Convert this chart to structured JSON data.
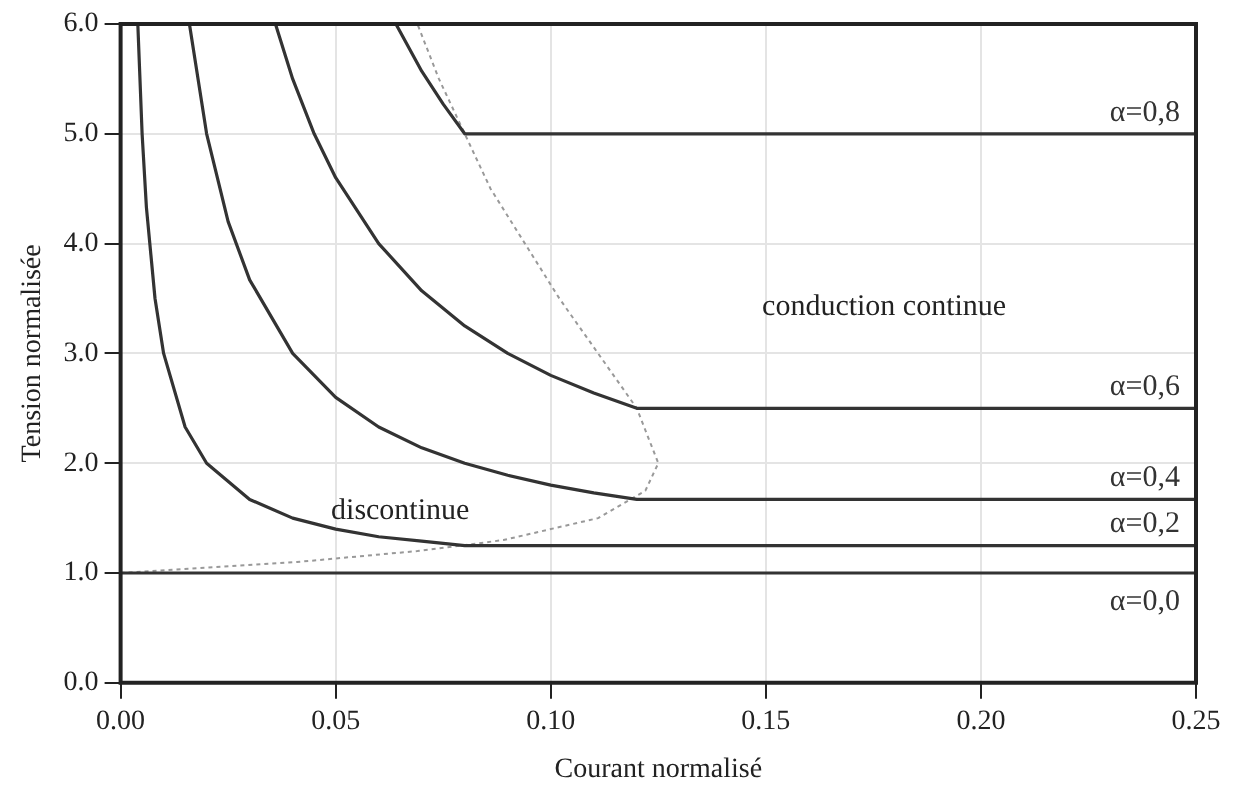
{
  "chart_data": {
    "type": "line",
    "xlabel": "Courant normalisé",
    "ylabel": "Tension normalisée",
    "xlim": [
      0,
      0.25
    ],
    "ylim": [
      0,
      6
    ],
    "xticks": [
      {
        "value": 0,
        "label": "0.00"
      },
      {
        "value": 0.05,
        "label": "0.05"
      },
      {
        "value": 0.1,
        "label": "0.10"
      },
      {
        "value": 0.15,
        "label": "0.15"
      },
      {
        "value": 0.2,
        "label": "0.20"
      },
      {
        "value": 0.25,
        "label": "0.25"
      }
    ],
    "yticks": [
      {
        "value": 0,
        "label": "0.0"
      },
      {
        "value": 1,
        "label": "1.0"
      },
      {
        "value": 2,
        "label": "2.0"
      },
      {
        "value": 3,
        "label": "3.0"
      },
      {
        "value": 4,
        "label": "4.0"
      },
      {
        "value": 5,
        "label": "5.0"
      },
      {
        "value": 6,
        "label": "6.0"
      }
    ],
    "grid": true,
    "legend": false,
    "marker": "none",
    "annotations": [
      "discontinue",
      "conduction continue"
    ],
    "series": [
      {
        "name": "α=0,0",
        "color": "#333333",
        "x": [
          0,
          0.25
        ],
        "values": [
          1,
          1
        ]
      },
      {
        "name": "α=0,2",
        "color": "#333333",
        "x": [
          0.004,
          0.005,
          0.006,
          0.008,
          0.01,
          0.015,
          0.02,
          0.03,
          0.04,
          0.05,
          0.06,
          0.07,
          0.08,
          0.25
        ],
        "values": [
          6,
          5,
          4.33,
          3.5,
          3,
          2.33,
          2,
          1.67,
          1.5,
          1.4,
          1.33,
          1.29,
          1.25,
          1.25
        ]
      },
      {
        "name": "α=0,4",
        "color": "#333333",
        "x": [
          0.016,
          0.02,
          0.025,
          0.03,
          0.04,
          0.05,
          0.06,
          0.07,
          0.08,
          0.09,
          0.1,
          0.11,
          0.12,
          0.25
        ],
        "values": [
          6,
          5,
          4.2,
          3.67,
          3,
          2.6,
          2.33,
          2.14,
          2,
          1.89,
          1.8,
          1.73,
          1.67,
          1.67
        ]
      },
      {
        "name": "α=0,6",
        "color": "#333333",
        "x": [
          0.036,
          0.04,
          0.045,
          0.05,
          0.06,
          0.07,
          0.08,
          0.09,
          0.1,
          0.11,
          0.12,
          0.25
        ],
        "values": [
          6,
          5.5,
          5,
          4.6,
          4,
          3.57,
          3.25,
          3,
          2.8,
          2.64,
          2.5,
          2.5
        ]
      },
      {
        "name": "α=0,8",
        "color": "#333333",
        "x": [
          0.064,
          0.07,
          0.075,
          0.08,
          0.25
        ],
        "values": [
          6,
          5.57,
          5.27,
          5,
          5
        ]
      },
      {
        "color": "#999999",
        "line_style": "dotted",
        "x": [
          0,
          0.041,
          0.069,
          0.089,
          0.111,
          0.122,
          0.125,
          0.12,
          0.111,
          0.102,
          0.094,
          0.086,
          0.08,
          0.074,
          0.069
        ],
        "values": [
          1,
          1.1,
          1.2,
          1.3,
          1.5,
          1.75,
          2,
          2.5,
          3,
          3.5,
          4,
          4.5,
          5,
          5.5,
          6
        ]
      }
    ]
  }
}
